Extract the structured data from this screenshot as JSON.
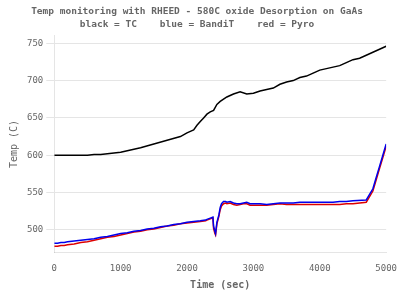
{
  "chart_data": {
    "type": "line",
    "title": "Temp monitoring with RHEED - 580C oxide Desorption on GaAs",
    "subtitle": "black = TC    blue = BandiT    red = Pyro",
    "xlabel": "Time (sec)",
    "ylabel": "Temp (C)",
    "xlim": [
      0,
      5000
    ],
    "ylim": [
      470,
      760
    ],
    "xticks": [
      0,
      1000,
      2000,
      3000,
      4000,
      5000
    ],
    "yticks": [
      500,
      550,
      600,
      650,
      700,
      750
    ],
    "grid": "y",
    "series": [
      {
        "color": "#000000",
        "x": [
          0,
          200,
          400,
          500,
          600,
          700,
          800,
          900,
          1000,
          1100,
          1200,
          1300,
          1500,
          1700,
          1900,
          2000,
          2050,
          2100,
          2150,
          2200,
          2250,
          2300,
          2350,
          2400,
          2450,
          2500,
          2600,
          2700,
          2800,
          2900,
          3000,
          3100,
          3200,
          3300,
          3400,
          3500,
          3600,
          3700,
          3800,
          3900,
          4000,
          4100,
          4200,
          4300,
          4400,
          4500,
          4600,
          4700,
          4800,
          4900,
          5000
        ],
        "values": [
          600,
          600,
          600,
          600,
          601,
          601,
          602,
          603,
          604,
          606,
          608,
          610,
          615,
          620,
          625,
          630,
          632,
          634,
          640,
          645,
          650,
          655,
          658,
          660,
          668,
          672,
          678,
          682,
          685,
          682,
          683,
          686,
          688,
          690,
          695,
          698,
          700,
          704,
          706,
          710,
          714,
          716,
          718,
          720,
          724,
          728,
          730,
          734,
          738,
          742,
          746
        ]
      },
      {
        "color": "#0000EE",
        "x": [
          0,
          50,
          100,
          150,
          200,
          300,
          400,
          500,
          600,
          700,
          800,
          900,
          1000,
          1100,
          1200,
          1300,
          1400,
          1500,
          1600,
          1700,
          1800,
          1900,
          2000,
          2100,
          2200,
          2280,
          2300,
          2330,
          2360,
          2390,
          2400,
          2420,
          2430,
          2450,
          2480,
          2500,
          2520,
          2550,
          2580,
          2600,
          2650,
          2700,
          2750,
          2800,
          2850,
          2900,
          2950,
          3000,
          3100,
          3200,
          3300,
          3400,
          3500,
          3600,
          3700,
          3800,
          3900,
          4000,
          4100,
          4200,
          4300,
          4400,
          4500,
          4700,
          4800,
          4850,
          4900,
          4950,
          5000
        ],
        "values": [
          482,
          482,
          483,
          483,
          484,
          485,
          486,
          487,
          488,
          490,
          491,
          493,
          495,
          496,
          498,
          499,
          501,
          502,
          504,
          505,
          507,
          508,
          510,
          511,
          512,
          513,
          514,
          515,
          516,
          517,
          505,
          498,
          495,
          510,
          520,
          530,
          535,
          538,
          538,
          537,
          538,
          536,
          535,
          535,
          536,
          537,
          535,
          535,
          535,
          534,
          535,
          536,
          536,
          536,
          537,
          537,
          537,
          537,
          537,
          537,
          538,
          538,
          539,
          540,
          555,
          570,
          585,
          600,
          615
        ]
      },
      {
        "color": "#DD0000",
        "x": [
          0,
          50,
          100,
          150,
          200,
          300,
          400,
          500,
          600,
          700,
          800,
          900,
          1000,
          1100,
          1200,
          1300,
          1400,
          1500,
          1600,
          1700,
          1800,
          1900,
          2000,
          2100,
          2200,
          2280,
          2300,
          2330,
          2360,
          2390,
          2400,
          2420,
          2430,
          2450,
          2480,
          2500,
          2520,
          2550,
          2580,
          2600,
          2650,
          2700,
          2750,
          2800,
          2850,
          2900,
          2950,
          3000,
          3100,
          3200,
          3300,
          3400,
          3500,
          3600,
          3700,
          3800,
          3900,
          4000,
          4100,
          4200,
          4300,
          4400,
          4500,
          4700,
          4800,
          4850,
          4900,
          4950,
          5000
        ],
        "values": [
          478,
          478,
          479,
          479,
          480,
          481,
          483,
          484,
          486,
          488,
          490,
          491,
          493,
          495,
          497,
          498,
          500,
          501,
          503,
          505,
          506,
          508,
          509,
          510,
          511,
          512,
          513,
          514,
          515,
          516,
          502,
          495,
          493,
          508,
          518,
          527,
          532,
          535,
          536,
          535,
          536,
          534,
          533,
          534,
          535,
          535,
          533,
          533,
          533,
          533,
          534,
          535,
          534,
          534,
          534,
          534,
          534,
          534,
          534,
          534,
          534,
          535,
          535,
          537,
          552,
          567,
          582,
          597,
          612
        ]
      }
    ]
  }
}
